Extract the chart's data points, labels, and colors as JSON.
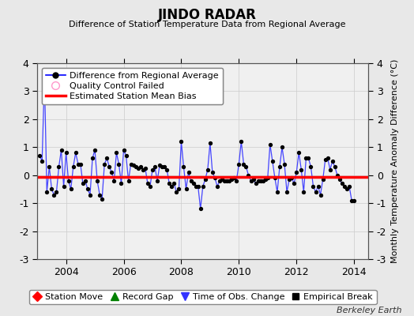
{
  "title": "JINDO RADAR",
  "subtitle": "Difference of Station Temperature Data from Regional Average",
  "ylabel_right": "Monthly Temperature Anomaly Difference (°C)",
  "background_color": "#e8e8e8",
  "plot_background": "#f0f0f0",
  "ylim": [
    -3,
    4
  ],
  "xlim_start": 2003.0,
  "xlim_end": 2014.5,
  "bias_value": -0.07,
  "line_color": "#4444ff",
  "marker_color": "#000000",
  "bias_color": "#ff0000",
  "grid_color": "#cccccc",
  "xticks": [
    2004,
    2006,
    2008,
    2010,
    2012,
    2014
  ],
  "yticks_left": [
    -3,
    -2,
    -1,
    0,
    1,
    2,
    3,
    4
  ],
  "yticks_right": [
    -3,
    -2,
    -1,
    0,
    1,
    2,
    3,
    4
  ],
  "footnote": "Berkeley Earth",
  "legend1_entries": [
    {
      "label": "Difference from Regional Average",
      "linecolor": "#0000ff",
      "markercolor": "#000000"
    },
    {
      "label": "Quality Control Failed",
      "markercolor": "#ff99cc"
    },
    {
      "label": "Estimated Station Mean Bias",
      "linecolor": "#ff0000"
    }
  ],
  "legend2_entries": [
    {
      "label": "Station Move",
      "color": "#ff0000",
      "marker": "D"
    },
    {
      "label": "Record Gap",
      "color": "#008000",
      "marker": "^"
    },
    {
      "label": "Time of Obs. Change",
      "color": "#3333ff",
      "marker": "v"
    },
    {
      "label": "Empirical Break",
      "color": "#000000",
      "marker": "s"
    }
  ],
  "data_x": [
    2003.083,
    2003.167,
    2003.25,
    2003.333,
    2003.417,
    2003.5,
    2003.583,
    2003.667,
    2003.75,
    2003.833,
    2003.917,
    2004.0,
    2004.083,
    2004.167,
    2004.25,
    2004.333,
    2004.417,
    2004.5,
    2004.583,
    2004.667,
    2004.75,
    2004.833,
    2004.917,
    2005.0,
    2005.083,
    2005.167,
    2005.25,
    2005.333,
    2005.417,
    2005.5,
    2005.583,
    2005.667,
    2005.75,
    2005.833,
    2005.917,
    2006.0,
    2006.083,
    2006.167,
    2006.25,
    2006.333,
    2006.417,
    2006.5,
    2006.583,
    2006.667,
    2006.75,
    2006.833,
    2006.917,
    2007.0,
    2007.083,
    2007.167,
    2007.25,
    2007.333,
    2007.417,
    2007.5,
    2007.583,
    2007.667,
    2007.75,
    2007.833,
    2007.917,
    2008.0,
    2008.083,
    2008.167,
    2008.25,
    2008.333,
    2008.417,
    2008.5,
    2008.583,
    2008.667,
    2008.75,
    2008.833,
    2008.917,
    2009.0,
    2009.083,
    2009.167,
    2009.25,
    2009.333,
    2009.417,
    2009.5,
    2009.583,
    2009.667,
    2009.75,
    2009.833,
    2009.917,
    2010.0,
    2010.083,
    2010.167,
    2010.25,
    2010.333,
    2010.417,
    2010.5,
    2010.583,
    2010.667,
    2010.75,
    2010.833,
    2010.917,
    2011.0,
    2011.083,
    2011.167,
    2011.25,
    2011.333,
    2011.417,
    2011.5,
    2011.583,
    2011.667,
    2011.75,
    2011.833,
    2011.917,
    2012.0,
    2012.083,
    2012.167,
    2012.25,
    2012.333,
    2012.417,
    2012.5,
    2012.583,
    2012.667,
    2012.75,
    2012.833,
    2012.917,
    2013.0,
    2013.083,
    2013.167,
    2013.25,
    2013.333,
    2013.417,
    2013.5,
    2013.583,
    2013.667,
    2013.75,
    2013.833,
    2013.917,
    2014.0
  ],
  "data_y": [
    0.7,
    0.5,
    3.5,
    -0.6,
    0.3,
    -0.5,
    -0.7,
    -0.6,
    0.3,
    0.9,
    -0.4,
    0.8,
    -0.2,
    -0.5,
    0.3,
    0.8,
    0.4,
    0.4,
    -0.3,
    -0.2,
    -0.5,
    -0.7,
    0.6,
    0.9,
    -0.2,
    -0.7,
    -0.85,
    0.4,
    0.6,
    0.3,
    0.1,
    -0.2,
    0.8,
    0.4,
    -0.3,
    0.9,
    0.7,
    -0.2,
    0.4,
    0.35,
    0.3,
    0.25,
    0.3,
    0.2,
    0.25,
    -0.3,
    -0.4,
    0.2,
    0.3,
    -0.2,
    0.35,
    0.3,
    0.3,
    0.2,
    -0.3,
    -0.4,
    -0.3,
    -0.6,
    -0.5,
    1.2,
    0.3,
    -0.5,
    0.1,
    -0.2,
    -0.3,
    -0.4,
    -0.4,
    -1.2,
    -0.4,
    -0.15,
    0.2,
    1.15,
    0.1,
    -0.1,
    -0.4,
    -0.2,
    -0.15,
    -0.2,
    -0.2,
    -0.2,
    -0.15,
    -0.1,
    -0.2,
    0.4,
    1.2,
    0.4,
    0.3,
    0.0,
    -0.2,
    -0.15,
    -0.3,
    -0.2,
    -0.2,
    -0.2,
    -0.15,
    -0.1,
    1.1,
    0.5,
    -0.1,
    -0.6,
    0.3,
    1.0,
    0.4,
    -0.6,
    -0.15,
    -0.1,
    -0.3,
    0.1,
    0.8,
    0.2,
    -0.6,
    0.6,
    0.6,
    0.3,
    -0.4,
    -0.6,
    -0.4,
    -0.7,
    -0.15,
    0.55,
    0.6,
    0.2,
    0.5,
    0.3,
    0.0,
    -0.15,
    -0.3,
    -0.4,
    -0.5,
    -0.4,
    -0.9,
    -0.9
  ]
}
